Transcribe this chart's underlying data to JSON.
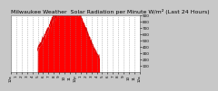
{
  "title": "Milwaukee Weather  Solar Radiation per Minute W/m² (Last 24 Hours)",
  "bg_color": "#c8c8c8",
  "plot_bg_color": "#ffffff",
  "fill_color": "#ff0000",
  "line_color": "#dd0000",
  "grid_color": "#888888",
  "ylim": [
    0,
    900
  ],
  "xlim": [
    0,
    1440
  ],
  "yticks": [
    100,
    200,
    300,
    400,
    500,
    600,
    700,
    800,
    900
  ],
  "num_points": 1440,
  "title_fontsize": 4.5,
  "tick_fontsize": 3.0,
  "xtick_positions": [
    0,
    60,
    120,
    180,
    240,
    300,
    360,
    420,
    480,
    540,
    600,
    660,
    720,
    780,
    840,
    900,
    960,
    1020,
    1080,
    1140,
    1200,
    1260,
    1320,
    1380,
    1440
  ],
  "xtick_labels": [
    "12a",
    "1",
    "2",
    "3",
    "4",
    "5",
    "6",
    "7",
    "8",
    "9",
    "10",
    "11",
    "12p",
    "1",
    "2",
    "3",
    "4",
    "5",
    "6",
    "7",
    "8",
    "9",
    "10",
    "11",
    "12a"
  ]
}
